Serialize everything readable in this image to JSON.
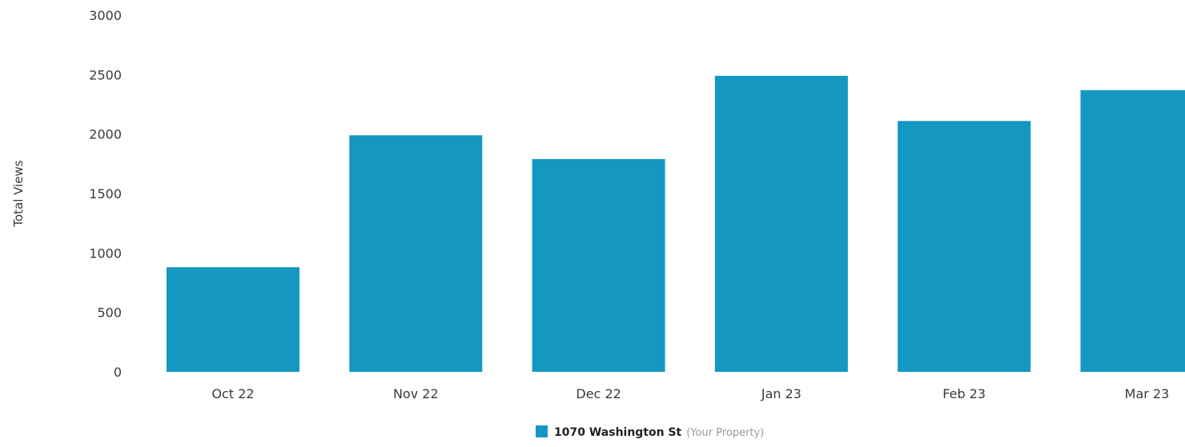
{
  "chart_data": {
    "type": "bar",
    "ylabel": "Total Views",
    "xlabel": "",
    "ylim": [
      0,
      3000
    ],
    "yticks": [
      0,
      500,
      1000,
      1500,
      2000,
      2500,
      3000
    ],
    "categories": [
      "Oct 22",
      "Nov 22",
      "Dec 22",
      "Jan 23",
      "Feb 23",
      "Mar 23"
    ],
    "series": [
      {
        "name": "1070 Washington St",
        "name_suffix": "(Your Property)",
        "color": "#1497c0",
        "values": [
          880,
          1990,
          1790,
          2490,
          2110,
          2370
        ]
      }
    ],
    "grid": false,
    "legend_position": "bottom-center"
  }
}
